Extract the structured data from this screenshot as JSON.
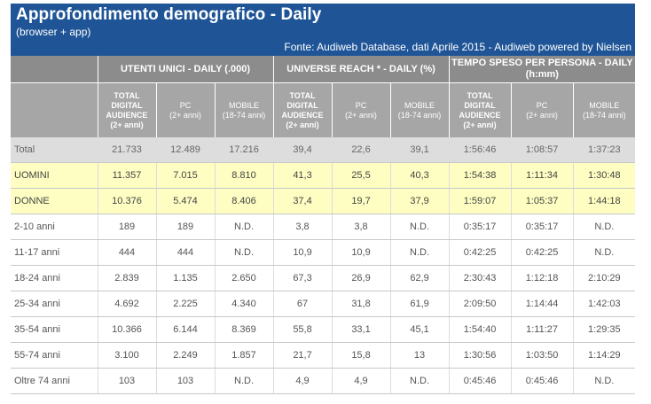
{
  "header": {
    "title": "Approfondimento demografico - Daily",
    "subtitle": "(browser + app)",
    "source": "Fonte: Audiweb Database, dati Aprile 2015 - Audiweb powered by Nielsen"
  },
  "groups": [
    "UTENTI UNICI - DAILY (.000)",
    "UNIVERSE REACH * - DAILY (%)",
    "TEMPO SPESO PER PERSONA - DAILY (h:mm)"
  ],
  "subcols": {
    "total": [
      "TOTAL",
      "DIGITAL",
      "AUDIENCE",
      "(2+ anni)"
    ],
    "pc": [
      "PC",
      "(2+ anni)"
    ],
    "mobile": [
      "MOBILE",
      "(18-74 anni)"
    ]
  },
  "rows": [
    {
      "label": "Total",
      "style": "total",
      "values": [
        "21.733",
        "12.489",
        "17.216",
        "39,4",
        "22,6",
        "39,1",
        "1:56:46",
        "1:08:57",
        "1:37:23"
      ]
    },
    {
      "label": "UOMINI",
      "style": "hl",
      "values": [
        "11.357",
        "7.015",
        "8.810",
        "41,3",
        "25,5",
        "40,3",
        "1:54:38",
        "1:11:34",
        "1:30:48"
      ]
    },
    {
      "label": "DONNE",
      "style": "hl",
      "values": [
        "10.376",
        "5.474",
        "8.406",
        "37,4",
        "19,7",
        "37,9",
        "1:59:07",
        "1:05:37",
        "1:44:18"
      ]
    },
    {
      "label": "2-10 anni",
      "style": "",
      "values": [
        "189",
        "189",
        "N.D.",
        "3,8",
        "3,8",
        "N.D.",
        "0:35:17",
        "0:35:17",
        "N.D."
      ]
    },
    {
      "label": "11-17 anni",
      "style": "",
      "values": [
        "444",
        "444",
        "N.D.",
        "10,9",
        "10,9",
        "N.D.",
        "0:42:25",
        "0:42:25",
        "N.D."
      ]
    },
    {
      "label": "18-24 anni",
      "style": "",
      "values": [
        "2.839",
        "1.135",
        "2.650",
        "67,3",
        "26,9",
        "62,9",
        "2:30:43",
        "1:12:18",
        "2:10:29"
      ]
    },
    {
      "label": "25-34 anni",
      "style": "",
      "values": [
        "4.692",
        "2.225",
        "4.340",
        "67",
        "31,8",
        "61,9",
        "2:09:50",
        "1:14:44",
        "1:42:03"
      ]
    },
    {
      "label": "35-54 anni",
      "style": "",
      "values": [
        "10.366",
        "6.144",
        "8.369",
        "55,8",
        "33,1",
        "45,1",
        "1:54:40",
        "1:11:27",
        "1:29:35"
      ]
    },
    {
      "label": "55-74 anni",
      "style": "",
      "values": [
        "3.100",
        "2.249",
        "1.857",
        "21,7",
        "15,8",
        "13",
        "1:30:56",
        "1:03:50",
        "1:14:29"
      ]
    },
    {
      "label": "Oltre 74 anni",
      "style": "",
      "values": [
        "103",
        "103",
        "N.D.",
        "4,9",
        "4,9",
        "N.D.",
        "0:45:46",
        "0:45:46",
        "N.D."
      ]
    }
  ]
}
